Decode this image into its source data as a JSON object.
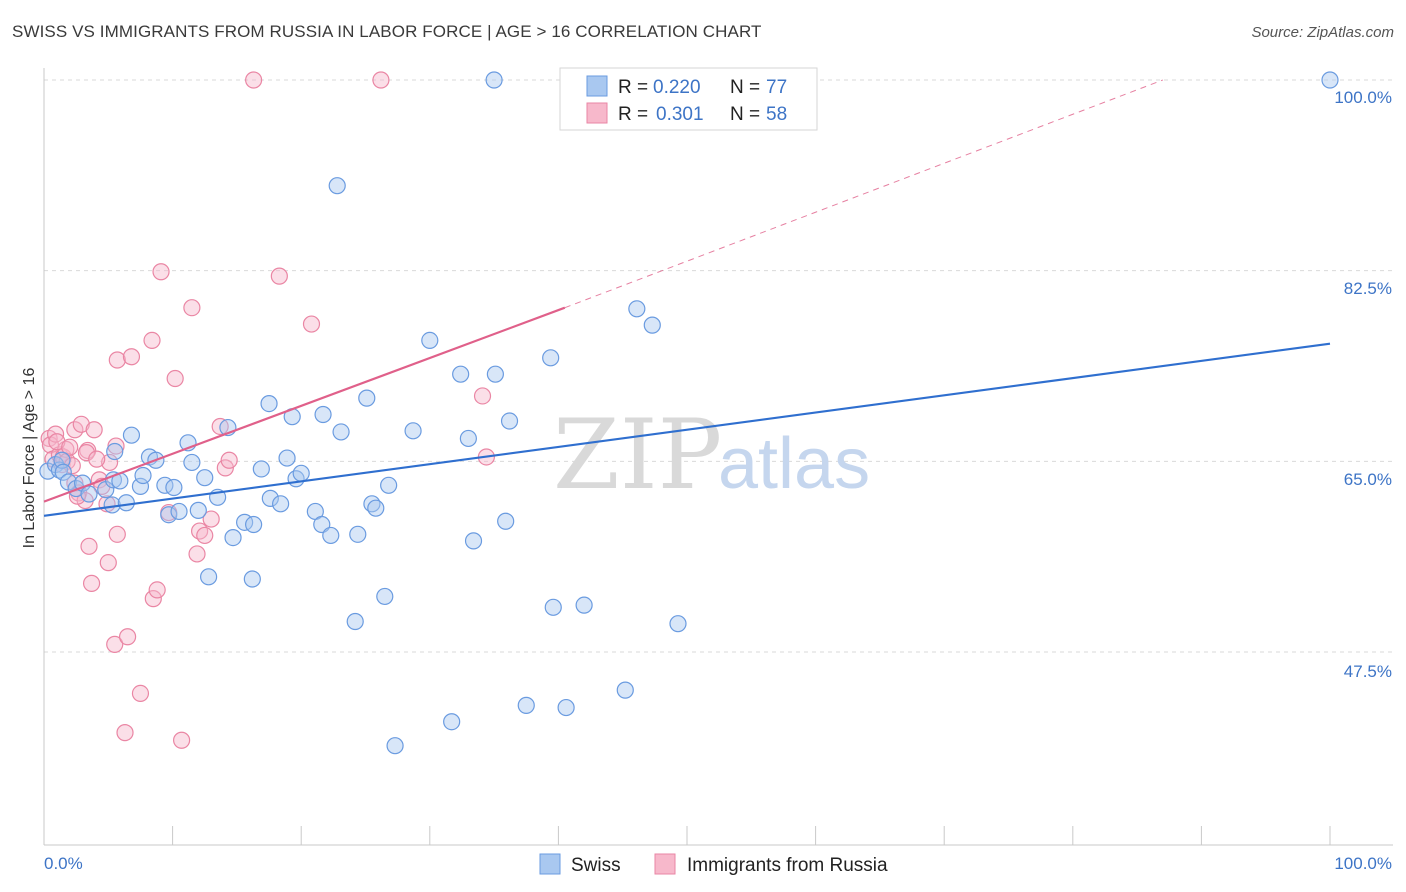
{
  "title": "SWISS VS IMMIGRANTS FROM RUSSIA IN LABOR FORCE | AGE > 16 CORRELATION CHART",
  "source": "Source: ZipAtlas.com",
  "watermark": {
    "zip": "ZIP",
    "atlas": "atlas"
  },
  "colors": {
    "swiss_fill": "#a9c8f0",
    "swiss_stroke": "#6a9be0",
    "swiss_line": "#2f6fcf",
    "russia_fill": "#f7b8cb",
    "russia_stroke": "#ea86a4",
    "russia_line": "#e0608a",
    "grid": "#d9d9d9",
    "axis_label": "#3d74c6"
  },
  "legend": {
    "rows": [
      {
        "r_label": "R =",
        "r_value": "0.220",
        "n_label": "N =",
        "n_value": "77"
      },
      {
        "r_label": "R =",
        "r_value": "0.301",
        "n_label": "N =",
        "n_value": "58"
      }
    ]
  },
  "bottom_legend": [
    "Swiss",
    "Immigrants from Russia"
  ],
  "chart_data": {
    "type": "scatter",
    "title": "SWISS VS IMMIGRANTS FROM RUSSIA IN LABOR FORCE | AGE > 16 CORRELATION CHART",
    "xlabel": "",
    "ylabel": "In Labor Force | Age > 16",
    "xlim": [
      0,
      100
    ],
    "ylim": [
      32.3,
      101.6
    ],
    "x_tick_labels": [
      "0.0%",
      "100.0%"
    ],
    "y_ticks": [
      100.0,
      82.5,
      65.0,
      47.5
    ],
    "y_tick_labels": [
      "100.0%",
      "82.5%",
      "65.0%",
      "47.5%"
    ],
    "grid": true,
    "legend_position": "top-center",
    "series": [
      {
        "name": "Swiss",
        "trend": {
          "x": [
            0,
            100
          ],
          "y": [
            60.0,
            75.8
          ]
        },
        "points": [
          [
            0.3,
            64.1
          ],
          [
            0.9,
            64.7
          ],
          [
            1.2,
            64.2
          ],
          [
            1.4,
            65.1
          ],
          [
            1.5,
            64.0
          ],
          [
            1.9,
            63.1
          ],
          [
            2.5,
            62.5
          ],
          [
            3.0,
            63.0
          ],
          [
            3.5,
            62.0
          ],
          [
            4.8,
            62.4
          ],
          [
            5.3,
            61.0
          ],
          [
            5.4,
            63.3
          ],
          [
            5.5,
            65.9
          ],
          [
            5.9,
            63.2
          ],
          [
            6.4,
            61.2
          ],
          [
            6.8,
            67.4
          ],
          [
            7.5,
            62.7
          ],
          [
            7.7,
            63.7
          ],
          [
            8.2,
            65.4
          ],
          [
            8.7,
            65.1
          ],
          [
            9.4,
            62.8
          ],
          [
            9.7,
            60.1
          ],
          [
            10.1,
            62.6
          ],
          [
            10.5,
            60.4
          ],
          [
            11.2,
            66.7
          ],
          [
            11.5,
            64.9
          ],
          [
            12.0,
            60.5
          ],
          [
            12.5,
            63.5
          ],
          [
            12.8,
            54.4
          ],
          [
            13.5,
            61.7
          ],
          [
            14.3,
            68.1
          ],
          [
            14.7,
            58.0
          ],
          [
            15.6,
            59.4
          ],
          [
            16.2,
            54.2
          ],
          [
            16.3,
            59.2
          ],
          [
            16.9,
            64.3
          ],
          [
            17.5,
            70.3
          ],
          [
            17.6,
            61.6
          ],
          [
            18.4,
            61.1
          ],
          [
            18.9,
            65.3
          ],
          [
            19.3,
            69.1
          ],
          [
            19.6,
            63.4
          ],
          [
            20.0,
            63.9
          ],
          [
            21.1,
            60.4
          ],
          [
            21.6,
            59.2
          ],
          [
            21.7,
            69.3
          ],
          [
            22.3,
            58.2
          ],
          [
            22.8,
            90.3
          ],
          [
            23.1,
            67.7
          ],
          [
            24.2,
            50.3
          ],
          [
            24.4,
            58.3
          ],
          [
            25.1,
            70.8
          ],
          [
            25.5,
            61.1
          ],
          [
            25.8,
            60.7
          ],
          [
            26.5,
            52.6
          ],
          [
            26.8,
            62.8
          ],
          [
            27.3,
            38.9
          ],
          [
            28.7,
            67.8
          ],
          [
            30.0,
            76.1
          ],
          [
            31.7,
            41.1
          ],
          [
            32.4,
            73.0
          ],
          [
            33.0,
            67.1
          ],
          [
            33.4,
            57.7
          ],
          [
            35.1,
            73.0
          ],
          [
            35.9,
            59.5
          ],
          [
            36.2,
            68.7
          ],
          [
            37.5,
            42.6
          ],
          [
            39.4,
            74.5
          ],
          [
            39.6,
            51.6
          ],
          [
            40.6,
            42.4
          ],
          [
            42.0,
            51.8
          ],
          [
            45.2,
            44.0
          ],
          [
            46.1,
            79.0
          ],
          [
            47.3,
            77.5
          ],
          [
            49.3,
            50.1
          ],
          [
            35.0,
            100.0
          ],
          [
            100.0,
            100.0
          ]
        ]
      },
      {
        "name": "Immigrants from Russia",
        "trend": {
          "x": [
            0,
            40.5
          ],
          "y": [
            61.3,
            79.1
          ]
        },
        "trend_dashed": {
          "x": [
            40.5,
            87
          ],
          "y": [
            79.1,
            100.0
          ]
        },
        "points": [
          [
            0.4,
            67.1
          ],
          [
            0.5,
            66.5
          ],
          [
            0.7,
            65.2
          ],
          [
            0.9,
            67.5
          ],
          [
            1.2,
            65.6
          ],
          [
            1.4,
            64.7
          ],
          [
            1.5,
            65.4
          ],
          [
            1.7,
            66.1
          ],
          [
            1.8,
            65.0
          ],
          [
            2.2,
            64.6
          ],
          [
            2.4,
            63.0
          ],
          [
            2.4,
            67.9
          ],
          [
            2.7,
            62.1
          ],
          [
            2.9,
            68.4
          ],
          [
            3.2,
            61.4
          ],
          [
            3.4,
            66.0
          ],
          [
            3.5,
            57.2
          ],
          [
            3.7,
            53.8
          ],
          [
            3.9,
            67.9
          ],
          [
            4.3,
            63.3
          ],
          [
            4.5,
            62.7
          ],
          [
            4.9,
            61.1
          ],
          [
            5.0,
            55.7
          ],
          [
            5.1,
            64.9
          ],
          [
            5.5,
            48.2
          ],
          [
            5.6,
            66.4
          ],
          [
            5.7,
            58.3
          ],
          [
            5.7,
            74.3
          ],
          [
            6.3,
            40.1
          ],
          [
            6.5,
            48.9
          ],
          [
            6.8,
            74.6
          ],
          [
            7.5,
            43.7
          ],
          [
            8.4,
            76.1
          ],
          [
            8.5,
            52.4
          ],
          [
            8.8,
            53.2
          ],
          [
            9.1,
            82.4
          ],
          [
            9.7,
            60.3
          ],
          [
            10.2,
            72.6
          ],
          [
            10.7,
            39.4
          ],
          [
            11.5,
            79.1
          ],
          [
            11.9,
            56.5
          ],
          [
            12.1,
            58.6
          ],
          [
            12.5,
            58.2
          ],
          [
            13.0,
            59.7
          ],
          [
            13.7,
            68.2
          ],
          [
            14.1,
            64.4
          ],
          [
            14.4,
            65.1
          ],
          [
            16.3,
            100.0
          ],
          [
            18.3,
            82.0
          ],
          [
            20.8,
            77.6
          ],
          [
            26.2,
            100.0
          ],
          [
            34.1,
            71.0
          ],
          [
            34.4,
            65.4
          ],
          [
            2.6,
            61.8
          ],
          [
            3.3,
            65.8
          ],
          [
            4.1,
            65.2
          ],
          [
            1.0,
            66.8
          ],
          [
            2.0,
            66.3
          ]
        ]
      }
    ]
  }
}
